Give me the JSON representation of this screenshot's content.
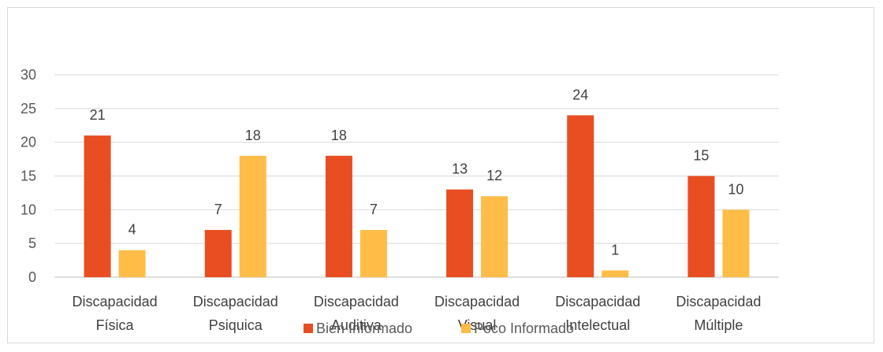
{
  "chart_data": {
    "type": "bar",
    "categories": [
      [
        "Discapacidad",
        "Física"
      ],
      [
        "Discapacidad",
        "Psiquica"
      ],
      [
        "Discapacidad",
        "Auditiva"
      ],
      [
        "Discapacidad",
        "Visual"
      ],
      [
        "Discapacidad",
        "Intelectual"
      ],
      [
        "Discapacidad",
        "Múltiple"
      ]
    ],
    "series": [
      {
        "name": "Bien Informado",
        "color": "#E84E22",
        "values": [
          21,
          7,
          18,
          13,
          24,
          15
        ]
      },
      {
        "name": "Poco Informado",
        "color": "#FFBC47",
        "values": [
          4,
          18,
          7,
          12,
          1,
          10
        ]
      }
    ],
    "ylim": [
      0,
      30
    ],
    "yticks": [
      0,
      5,
      10,
      15,
      20,
      25,
      30
    ],
    "grid": true,
    "legend_position": "bottom",
    "data_labels": true
  }
}
